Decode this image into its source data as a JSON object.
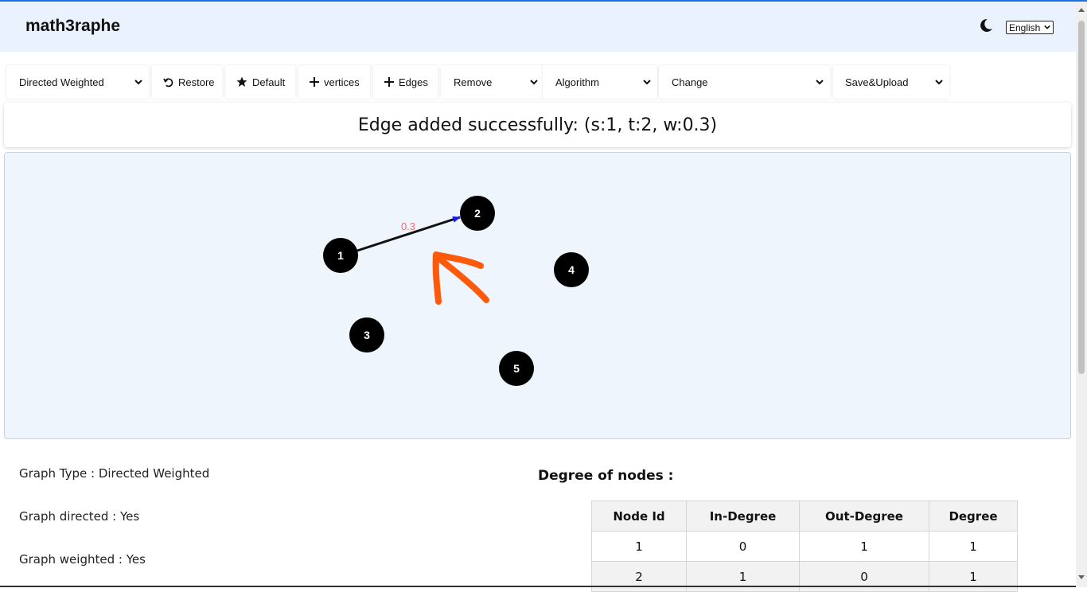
{
  "app": {
    "title": "math3raphe"
  },
  "header": {
    "theme_icon": "moon-icon",
    "language": "English"
  },
  "toolbar": {
    "graph_type": "Directed Weighted",
    "restore": "Restore",
    "default": "Default",
    "vertices": "vertices",
    "edges": "Edges",
    "remove": "Remove",
    "algorithm": "Algorithm",
    "change": "Change",
    "save_upload": "Save&Upload"
  },
  "status": {
    "message": "Edge added successfully: (s:1, t:2, w:0.3)"
  },
  "graph": {
    "nodes": [
      "1",
      "2",
      "3",
      "4",
      "5"
    ],
    "edges": [
      {
        "source": "1",
        "target": "2",
        "weight": "0.3"
      }
    ],
    "annotation": "orange-arrow-icon",
    "colors": {
      "node": "#000000",
      "edge": "#111111",
      "arrowhead": "#1a1aff",
      "weight_label": "#f07070",
      "annotation": "#ff5a0a"
    }
  },
  "info": {
    "graph_type": "Graph Type : Directed Weighted",
    "graph_directed": "Graph directed : Yes",
    "graph_weighted": "Graph weighted : Yes"
  },
  "degree": {
    "title": "Degree of nodes :",
    "headers": [
      "Node Id",
      "In-Degree",
      "Out-Degree",
      "Degree"
    ],
    "rows": [
      [
        "1",
        "0",
        "1",
        "1"
      ],
      [
        "2",
        "1",
        "0",
        "1"
      ]
    ]
  }
}
